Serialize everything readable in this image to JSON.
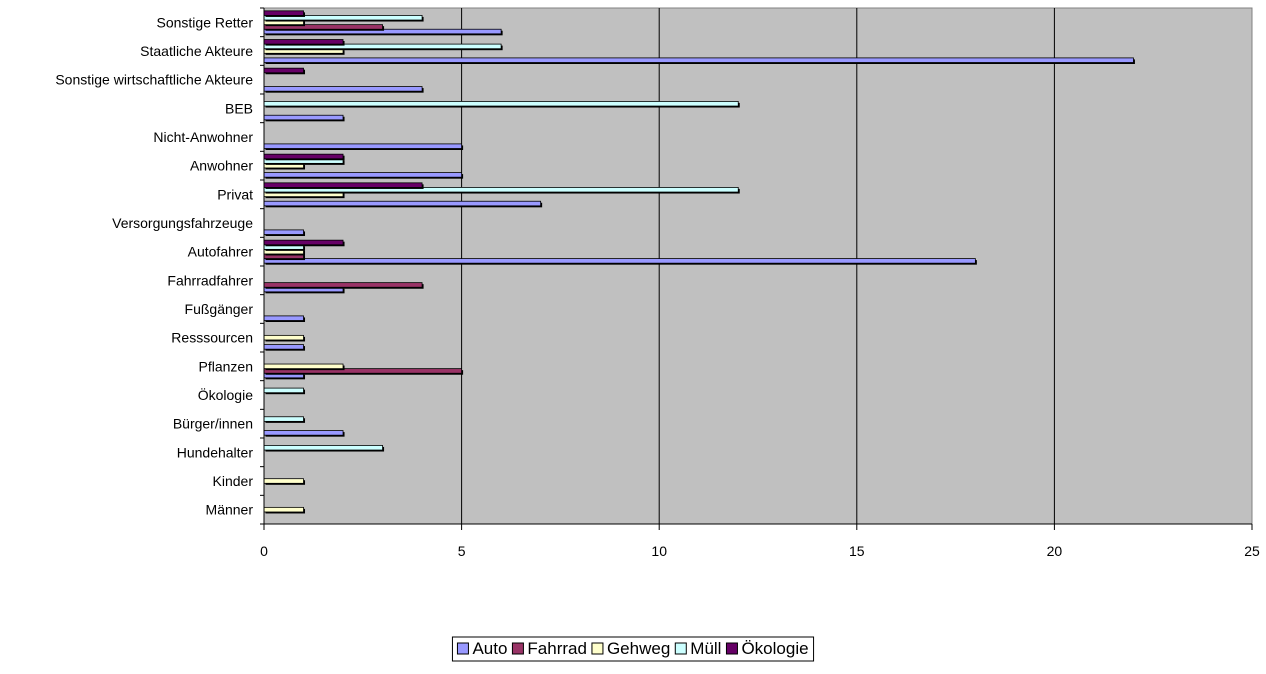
{
  "chart_data": {
    "type": "bar",
    "orientation": "horizontal",
    "categories": [
      "Männer",
      "Kinder",
      "Hundehalter",
      "Bürger/innen",
      "Ökologie",
      "Pflanzen",
      "Resssourcen",
      "Fußgänger",
      "Fahrradfahrer",
      "Autofahrer",
      "Versorgungsfahrzeuge",
      "Privat",
      "Anwohner",
      "Nicht-Anwohner",
      "BEB",
      "Sonstige wirtschaftliche Akteure",
      "Staatliche Akteure",
      "Sonstige Retter"
    ],
    "series": [
      {
        "name": "Auto",
        "color": "#9999ff",
        "values": [
          0,
          0,
          0,
          2,
          0,
          1,
          1,
          1,
          2,
          18,
          1,
          7,
          5,
          5,
          2,
          4,
          22,
          6
        ]
      },
      {
        "name": "Fahrrad",
        "color": "#993366",
        "values": [
          0,
          0,
          0,
          0,
          0,
          5,
          0,
          0,
          4,
          1,
          0,
          0,
          0,
          0,
          0,
          0,
          0,
          3
        ]
      },
      {
        "name": "Gehweg",
        "color": "#ffffcc",
        "values": [
          1,
          1,
          0,
          0,
          0,
          2,
          1,
          0,
          0,
          1,
          0,
          2,
          1,
          0,
          0,
          0,
          2,
          1
        ]
      },
      {
        "name": "Müll",
        "color": "#ccffff",
        "values": [
          0,
          0,
          3,
          1,
          1,
          0,
          0,
          0,
          0,
          1,
          0,
          12,
          2,
          0,
          12,
          0,
          6,
          4
        ]
      },
      {
        "name": "Ökologie",
        "color": "#660066",
        "values": [
          0,
          0,
          0,
          0,
          0,
          0,
          0,
          0,
          0,
          2,
          0,
          4,
          2,
          0,
          0,
          1,
          2,
          1
        ]
      }
    ],
    "xlim": [
      0,
      25
    ],
    "xticks": [
      "0",
      "5",
      "10",
      "15",
      "20",
      "25"
    ],
    "title": "",
    "xlabel": "",
    "ylabel": "",
    "grid": "vertical major gridlines",
    "plot_background": "#c0c0c0",
    "legend_position": "bottom-center"
  }
}
